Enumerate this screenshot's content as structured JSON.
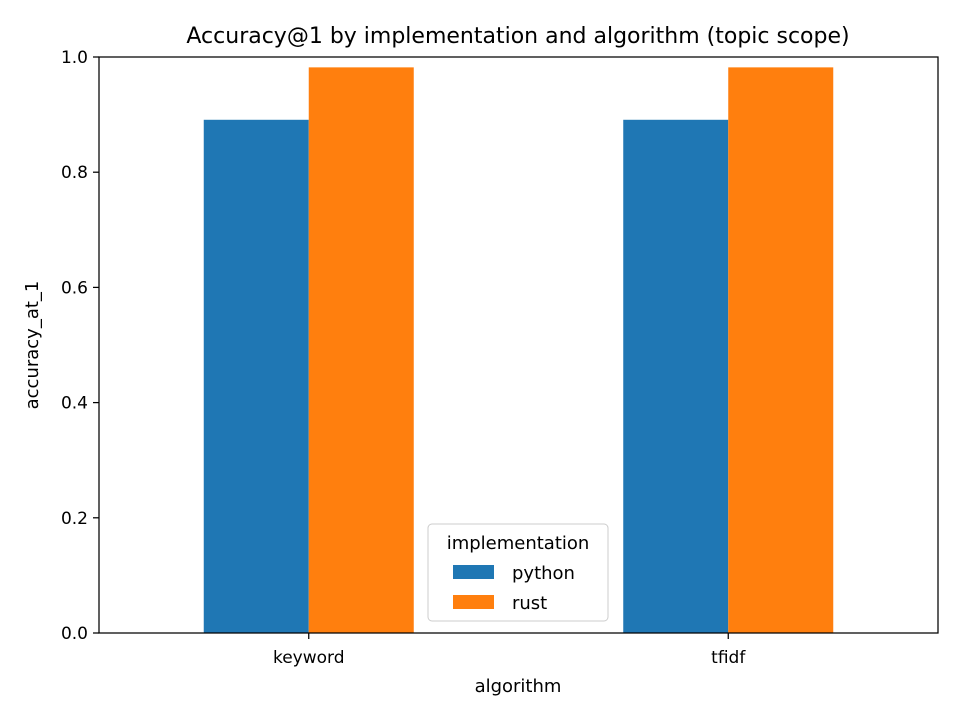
{
  "chart_data": {
    "type": "bar",
    "title": "Accuracy@1 by implementation and algorithm (topic scope)",
    "xlabel": "algorithm",
    "ylabel": "accuracy_at_1",
    "categories": [
      "keyword",
      "tfidf"
    ],
    "series": [
      {
        "name": "python",
        "values": [
          0.891,
          0.891
        ],
        "color": "#1f77b4"
      },
      {
        "name": "rust",
        "values": [
          0.982,
          0.982
        ],
        "color": "#ff7f0e"
      }
    ],
    "ylim": [
      0,
      1.0
    ],
    "yticks": [
      "0.0",
      "0.2",
      "0.4",
      "0.6",
      "0.8",
      "1.0"
    ],
    "grid": false,
    "legend": {
      "title": "implementation",
      "placement": "bottom-center"
    }
  }
}
